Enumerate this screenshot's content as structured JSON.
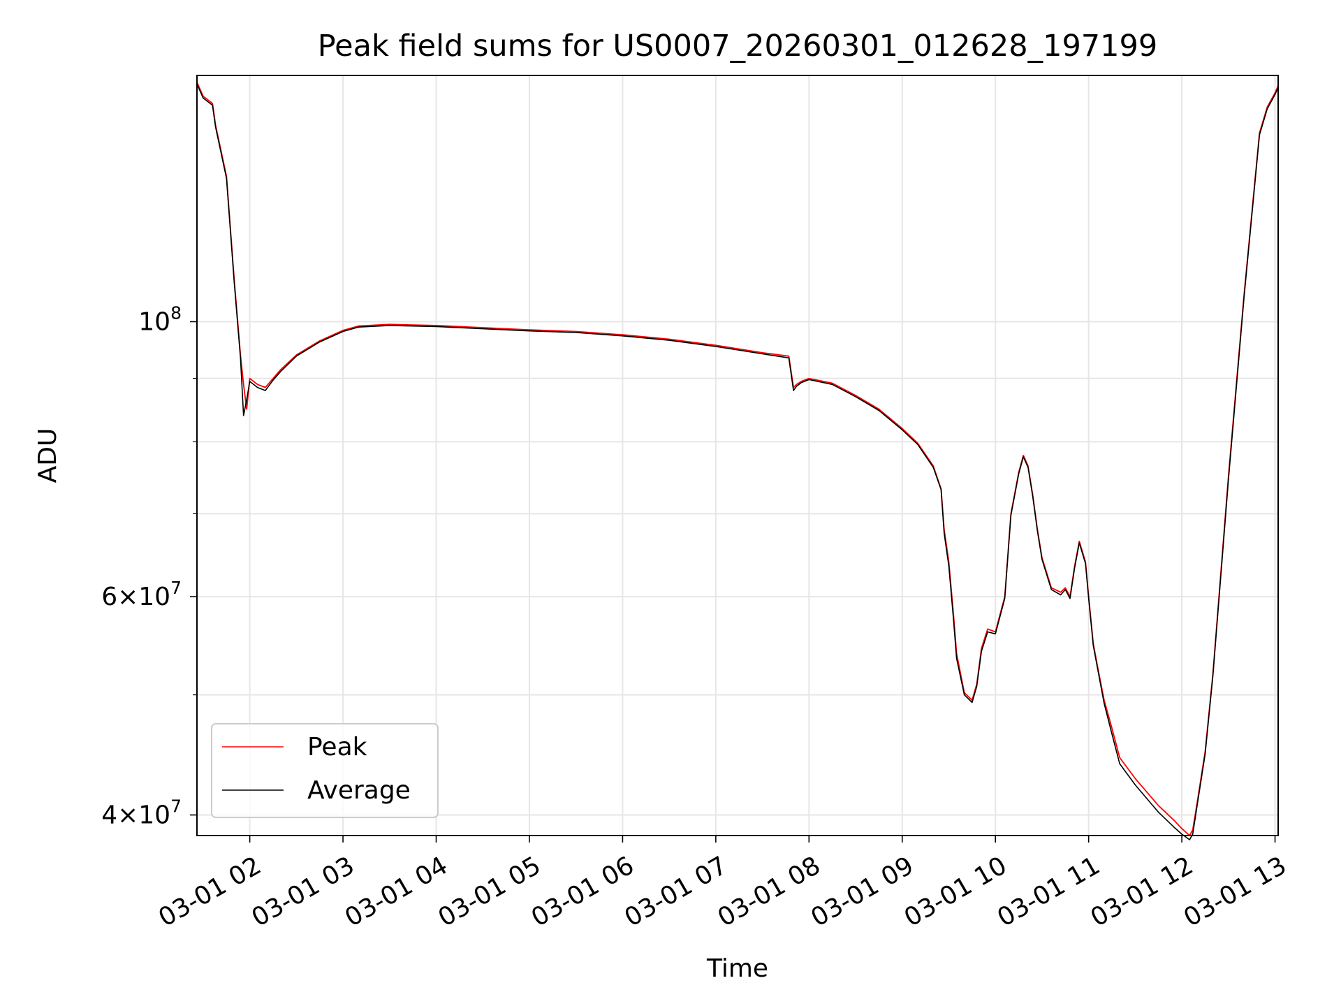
{
  "chart_data": {
    "type": "line",
    "title": "Peak field sums for US0007_20260301_012628_197199",
    "xlabel": "Time",
    "ylabel": "ADU",
    "yscale": "log",
    "grid": true,
    "legend_position": "lower-left",
    "xlim": [
      "2026-03-01 01:26",
      "2026-03-01 13:02"
    ],
    "ylim": [
      38500000,
      158000000
    ],
    "x_ticks": [
      "03-01 02",
      "03-01 03",
      "03-01 04",
      "03-01 05",
      "03-01 06",
      "03-01 07",
      "03-01 08",
      "03-01 09",
      "03-01 10",
      "03-01 11",
      "03-01 12",
      "03-01 13"
    ],
    "y_ticks_major": [
      {
        "value": 100000000,
        "base": "10",
        "exp": "8",
        "mult": ""
      },
      {
        "value": 60000000,
        "base": "10",
        "exp": "7",
        "mult": "6"
      },
      {
        "value": 40000000,
        "base": "10",
        "exp": "7",
        "mult": "4"
      }
    ],
    "y_ticks_minor": [
      90000000,
      80000000,
      70000000,
      50000000
    ],
    "series": [
      {
        "name": "Peak",
        "color": "#ff0000",
        "x": [
          "01:26",
          "01:30",
          "01:36",
          "01:38",
          "01:45",
          "01:50",
          "01:54",
          "01:56",
          "01:58",
          "02:00",
          "02:05",
          "02:10",
          "02:15",
          "02:20",
          "02:30",
          "02:45",
          "03:00",
          "03:10",
          "03:30",
          "03:45",
          "04:00",
          "04:30",
          "05:00",
          "05:30",
          "06:00",
          "06:30",
          "07:00",
          "07:30",
          "07:47",
          "07:50",
          "07:52",
          "07:55",
          "08:00",
          "08:15",
          "08:30",
          "08:45",
          "09:00",
          "09:10",
          "09:20",
          "09:25",
          "09:27",
          "09:30",
          "09:33",
          "09:35",
          "09:40",
          "09:45",
          "09:48",
          "09:51",
          "09:55",
          "10:00",
          "10:06",
          "10:10",
          "10:15",
          "10:18",
          "10:21",
          "10:24",
          "10:27",
          "10:30",
          "10:36",
          "10:42",
          "10:45",
          "10:48",
          "10:51",
          "10:54",
          "10:58",
          "11:00",
          "11:03",
          "11:06",
          "11:10",
          "11:15",
          "11:20",
          "11:30",
          "11:45",
          "11:55",
          "12:00",
          "12:05",
          "12:07",
          "12:10",
          "12:15",
          "12:20",
          "12:30",
          "12:40",
          "12:50",
          "12:55",
          "13:00",
          "13:02"
        ],
        "values": [
          156000000,
          152000000,
          150000000,
          144000000,
          131000000,
          108000000,
          94000000,
          89000000,
          85000000,
          90000000,
          89000000,
          88500000,
          90000000,
          91500000,
          94000000,
          96500000,
          98400000,
          99200000,
          99500000,
          99400000,
          99300000,
          98900000,
          98500000,
          98200000,
          97600000,
          96800000,
          95700000,
          94400000,
          93800000,
          88500000,
          89000000,
          89500000,
          90000000,
          89200000,
          87200000,
          85000000,
          82000000,
          79800000,
          76500000,
          73300000,
          68000000,
          64000000,
          58000000,
          54000000,
          50200000,
          49500000,
          51000000,
          54500000,
          56500000,
          56200000,
          60000000,
          70000000,
          75600000,
          78000000,
          76500000,
          72500000,
          68000000,
          64500000,
          61000000,
          60500000,
          61000000,
          60000000,
          63500000,
          66500000,
          64000000,
          60000000,
          55000000,
          52500000,
          49500000,
          47000000,
          44500000,
          42800000,
          40700000,
          39600000,
          39000000,
          38500000,
          38900000,
          41000000,
          45000000,
          52000000,
          75000000,
          105000000,
          142000000,
          149000000,
          153000000,
          155000000
        ]
      },
      {
        "name": "Average",
        "color": "#000000",
        "x": [
          "01:26",
          "01:30",
          "01:36",
          "01:38",
          "01:45",
          "01:50",
          "01:54",
          "01:56",
          "01:58",
          "02:00",
          "02:05",
          "02:10",
          "02:15",
          "02:20",
          "02:30",
          "02:45",
          "03:00",
          "03:10",
          "03:30",
          "03:45",
          "04:00",
          "04:30",
          "05:00",
          "05:30",
          "06:00",
          "06:30",
          "07:00",
          "07:30",
          "07:47",
          "07:50",
          "07:52",
          "07:55",
          "08:00",
          "08:15",
          "08:30",
          "08:45",
          "09:00",
          "09:10",
          "09:20",
          "09:25",
          "09:27",
          "09:30",
          "09:33",
          "09:35",
          "09:40",
          "09:45",
          "09:48",
          "09:51",
          "09:55",
          "10:00",
          "10:06",
          "10:10",
          "10:15",
          "10:18",
          "10:21",
          "10:24",
          "10:27",
          "10:30",
          "10:36",
          "10:42",
          "10:45",
          "10:48",
          "10:51",
          "10:54",
          "10:58",
          "11:00",
          "11:03",
          "11:06",
          "11:10",
          "11:15",
          "11:20",
          "11:30",
          "11:45",
          "11:55",
          "12:00",
          "12:05",
          "12:07",
          "12:10",
          "12:15",
          "12:20",
          "12:30",
          "12:40",
          "12:50",
          "12:55",
          "13:00",
          "13:02"
        ],
        "values": [
          155500000,
          151500000,
          149500000,
          143500000,
          130500000,
          107500000,
          93500000,
          84000000,
          86500000,
          89500000,
          88500000,
          88000000,
          89700000,
          91200000,
          93800000,
          96300000,
          98200000,
          99000000,
          99300000,
          99200000,
          99100000,
          98700000,
          98300000,
          98000000,
          97400000,
          96600000,
          95500000,
          94200000,
          93500000,
          88000000,
          88700000,
          89300000,
          89800000,
          89000000,
          87000000,
          84800000,
          81800000,
          79600000,
          76300000,
          73200000,
          67500000,
          63500000,
          57500000,
          53500000,
          50000000,
          49300000,
          50800000,
          54200000,
          56200000,
          56000000,
          59800000,
          69800000,
          75400000,
          77800000,
          76300000,
          72300000,
          67800000,
          64300000,
          60800000,
          60200000,
          60800000,
          59800000,
          63300000,
          66300000,
          63800000,
          59800000,
          54800000,
          52300000,
          49200000,
          46500000,
          44000000,
          42300000,
          40200000,
          39100000,
          38600000,
          38200000,
          38600000,
          40800000,
          44800000,
          51800000,
          74500000,
          104500000,
          141500000,
          148500000,
          152500000,
          154500000
        ]
      }
    ]
  }
}
